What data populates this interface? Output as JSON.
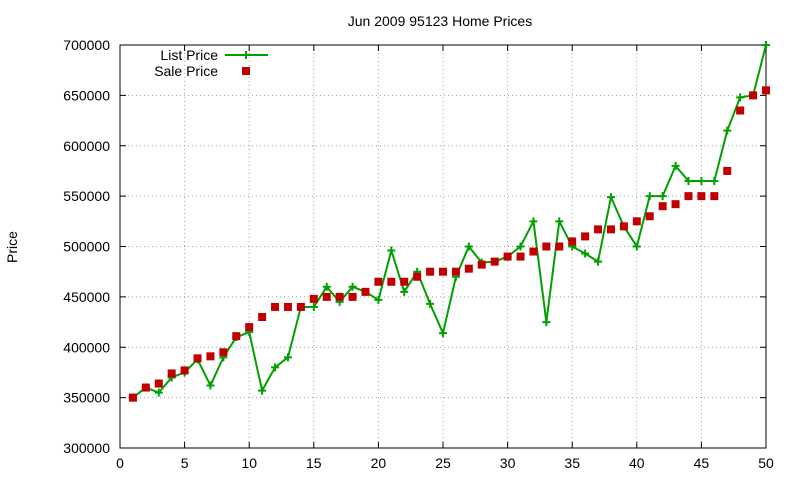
{
  "chart_data": {
    "type": "line",
    "title": "Jun 2009 95123 Home Prices",
    "xlabel": "",
    "ylabel": "Price",
    "xlim": [
      0,
      50
    ],
    "ylim": [
      300000,
      700000
    ],
    "xticks": [
      0,
      5,
      10,
      15,
      20,
      25,
      30,
      35,
      40,
      45,
      50
    ],
    "yticks": [
      300000,
      350000,
      400000,
      450000,
      500000,
      550000,
      600000,
      650000,
      700000
    ],
    "grid": true,
    "legend_position": "top-left",
    "series": [
      {
        "name": "List Price",
        "style": "line-plus",
        "color": "#00a000",
        "x": [
          1,
          2,
          3,
          4,
          5,
          6,
          7,
          8,
          9,
          10,
          11,
          12,
          13,
          14,
          15,
          16,
          17,
          18,
          19,
          20,
          21,
          22,
          23,
          24,
          25,
          26,
          27,
          28,
          29,
          30,
          31,
          32,
          33,
          34,
          35,
          36,
          37,
          38,
          39,
          40,
          41,
          42,
          43,
          44,
          45,
          46,
          47,
          48,
          49,
          50
        ],
        "y": [
          350000,
          360000,
          355000,
          370000,
          375000,
          388000,
          362000,
          390000,
          410000,
          415000,
          357000,
          380000,
          390000,
          440000,
          440000,
          460000,
          445000,
          460000,
          455000,
          447000,
          496000,
          455000,
          475000,
          443000,
          414000,
          470000,
          500000,
          484000,
          485000,
          490000,
          500000,
          525000,
          425000,
          525000,
          500000,
          493000,
          485000,
          549000,
          520000,
          500000,
          550000,
          550000,
          580000,
          565000,
          565000,
          565000,
          615000,
          648000,
          650000,
          700000
        ]
      },
      {
        "name": "Sale Price",
        "style": "square-markers",
        "color": "#c00000",
        "x": [
          1,
          2,
          3,
          4,
          5,
          6,
          7,
          8,
          9,
          10,
          11,
          12,
          13,
          14,
          15,
          16,
          17,
          18,
          19,
          20,
          21,
          22,
          23,
          24,
          25,
          26,
          27,
          28,
          29,
          30,
          31,
          32,
          33,
          34,
          35,
          36,
          37,
          38,
          39,
          40,
          41,
          42,
          43,
          44,
          45,
          46,
          47,
          48,
          49,
          50
        ],
        "y": [
          350000,
          360000,
          364000,
          374000,
          377000,
          389000,
          391000,
          395000,
          411000,
          420000,
          430000,
          440000,
          440000,
          440000,
          448000,
          450000,
          450000,
          450000,
          455000,
          465000,
          465000,
          465000,
          470000,
          475000,
          475000,
          475000,
          478000,
          482000,
          485000,
          490000,
          490000,
          495000,
          500000,
          500000,
          505000,
          510000,
          517000,
          517000,
          520000,
          525000,
          530000,
          540000,
          542000,
          550000,
          550000,
          550000,
          575000,
          635000,
          650000,
          655000
        ]
      }
    ]
  }
}
